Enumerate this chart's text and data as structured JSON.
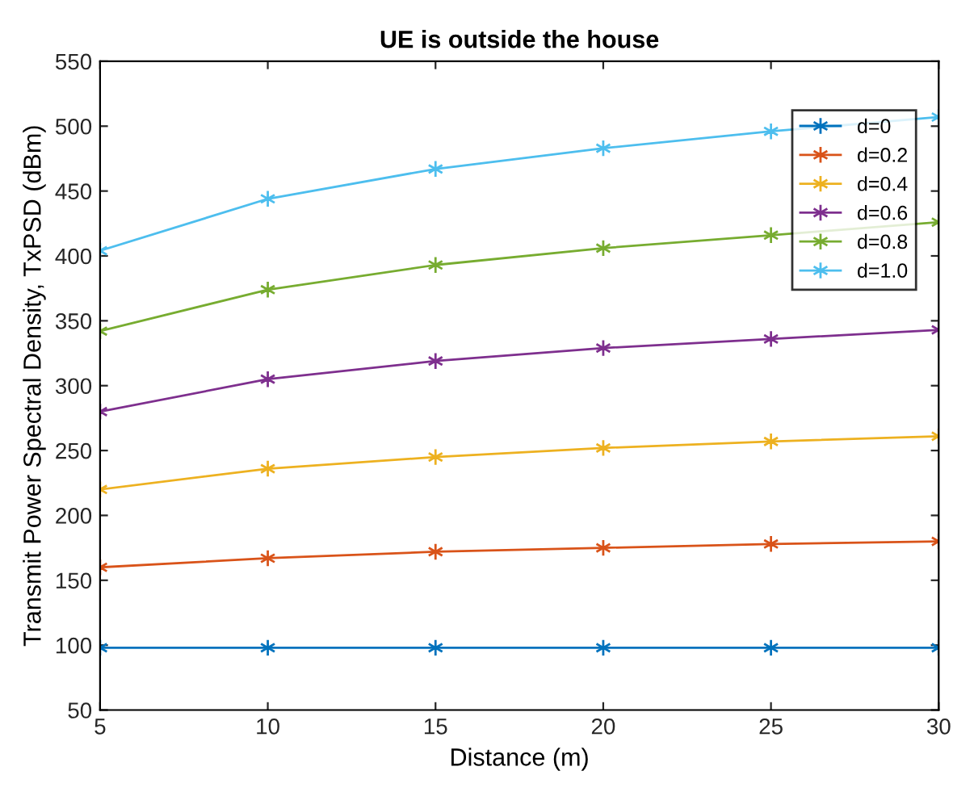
{
  "chart_data": {
    "type": "line",
    "title": "UE is outside the house",
    "xlabel": "Distance (m)",
    "ylabel": "Transmit Power Spectral Density, TxPSD (dBm)",
    "x": [
      5,
      10,
      15,
      20,
      25,
      30
    ],
    "series": [
      {
        "name": "d=0",
        "color": "#0072bd",
        "values": [
          98,
          98,
          98,
          98,
          98,
          98
        ]
      },
      {
        "name": "d=0.2",
        "color": "#d95319",
        "values": [
          160,
          167,
          172,
          175,
          178,
          180
        ]
      },
      {
        "name": "d=0.4",
        "color": "#edb120",
        "values": [
          220,
          236,
          245,
          252,
          257,
          261
        ]
      },
      {
        "name": "d=0.6",
        "color": "#7e2f8e",
        "values": [
          280,
          305,
          319,
          329,
          336,
          343
        ]
      },
      {
        "name": "d=0.8",
        "color": "#77ac30",
        "values": [
          342,
          374,
          393,
          406,
          416,
          426
        ]
      },
      {
        "name": "d=1.0",
        "color": "#4dbeee",
        "values": [
          404,
          444,
          467,
          483,
          496,
          507
        ]
      }
    ],
    "xlim": [
      5,
      30
    ],
    "xticks": [
      5,
      10,
      15,
      20,
      25,
      30
    ],
    "ylim": [
      50,
      550
    ],
    "yticks": [
      50,
      100,
      150,
      200,
      250,
      300,
      350,
      400,
      450,
      500,
      550
    ],
    "grid": false,
    "legend": "top right",
    "marker": "cross",
    "line_style": "solid"
  }
}
